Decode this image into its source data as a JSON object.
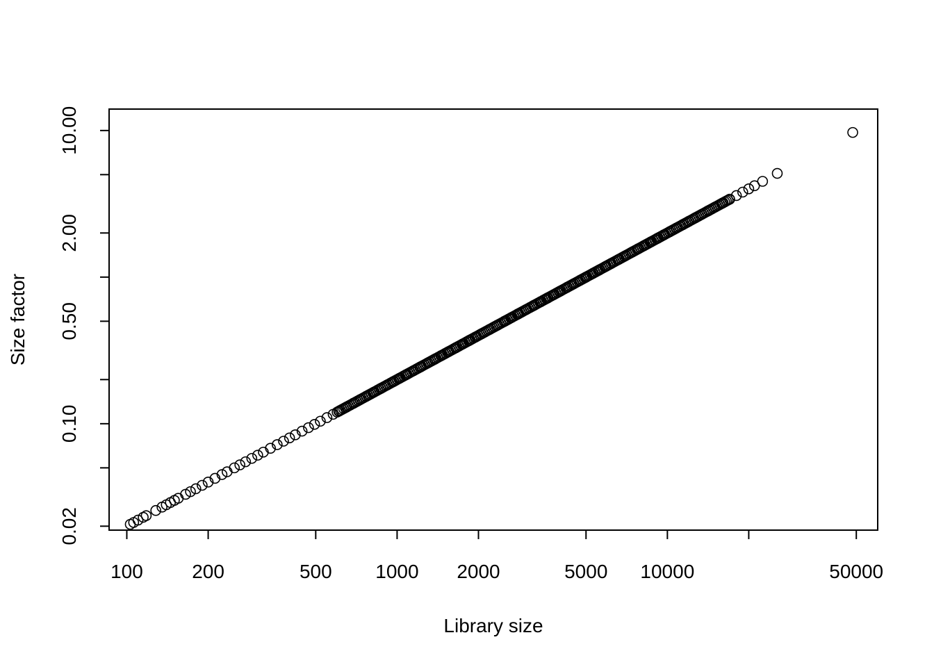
{
  "chart_data": {
    "type": "scatter",
    "title": "",
    "xlabel": "Library size",
    "ylabel": "Size factor",
    "x_scale": "log",
    "y_scale": "log",
    "xlim": [
      86,
      60000
    ],
    "ylim": [
      0.0188,
      14.0
    ],
    "grid": false,
    "legend": "none",
    "marker": "open-circle",
    "x_ticks": [
      100,
      200,
      500,
      1000,
      2000,
      5000,
      10000,
      20000,
      50000
    ],
    "x_tick_labels": [
      "100",
      "200",
      "500",
      "1000",
      "2000",
      "5000",
      "10000",
      "",
      "50000"
    ],
    "y_ticks": [
      0.02,
      0.05,
      0.1,
      0.2,
      0.5,
      1,
      2,
      5,
      10
    ],
    "y_tick_labels": [
      "0.02",
      "",
      "0.10",
      "",
      "0.50",
      "",
      "2.00",
      "",
      "10.00"
    ],
    "points_description": "Points lie on the line size_factor = library_size / 5000",
    "series": [
      {
        "x": [
          103,
          106,
          110,
          115,
          118,
          128,
          135,
          140,
          145,
          150,
          155,
          165,
          172,
          180,
          190,
          200,
          212,
          225,
          235,
          250,
          262,
          275,
          290,
          305,
          320,
          340,
          360,
          380,
          400,
          420,
          445,
          470,
          495,
          520,
          550,
          580,
          610,
          650,
          690,
          730,
          770,
          820,
          870,
          920,
          970,
          1020,
          1080,
          1150,
          1220,
          1300,
          1380,
          1460,
          1550,
          1650,
          1750,
          1850,
          1950,
          2050,
          2200,
          2350,
          2500,
          2650,
          2800,
          3000,
          3200,
          3400,
          3600,
          3800,
          4000,
          4250,
          4500,
          4750,
          5000,
          5300,
          5600,
          5900,
          6200,
          6600,
          7000,
          7400,
          7800,
          8200,
          8700,
          9200,
          9700,
          10200,
          10800,
          11400,
          12000,
          12700,
          13400,
          14200,
          15000,
          16000,
          17000,
          18000,
          19000,
          20000,
          21000,
          22500,
          25500,
          48500
        ],
        "y": [
          0.0206,
          0.0212,
          0.022,
          0.023,
          0.0236,
          0.0256,
          0.027,
          0.028,
          0.029,
          0.03,
          0.031,
          0.033,
          0.0344,
          0.036,
          0.038,
          0.04,
          0.0424,
          0.045,
          0.047,
          0.05,
          0.0524,
          0.055,
          0.058,
          0.061,
          0.064,
          0.068,
          0.072,
          0.076,
          0.08,
          0.084,
          0.089,
          0.094,
          0.099,
          0.104,
          0.11,
          0.116,
          0.122,
          0.13,
          0.138,
          0.146,
          0.154,
          0.164,
          0.174,
          0.184,
          0.194,
          0.204,
          0.216,
          0.23,
          0.244,
          0.26,
          0.276,
          0.292,
          0.31,
          0.33,
          0.35,
          0.37,
          0.39,
          0.41,
          0.44,
          0.47,
          0.5,
          0.53,
          0.56,
          0.6,
          0.64,
          0.68,
          0.72,
          0.76,
          0.8,
          0.85,
          0.9,
          0.95,
          1.0,
          1.06,
          1.12,
          1.18,
          1.24,
          1.32,
          1.4,
          1.48,
          1.56,
          1.64,
          1.74,
          1.84,
          1.94,
          2.04,
          2.16,
          2.28,
          2.4,
          2.54,
          2.68,
          2.84,
          3.0,
          3.2,
          3.4,
          3.6,
          3.8,
          4.0,
          4.2,
          4.5,
          5.1,
          9.7
        ]
      }
    ]
  }
}
